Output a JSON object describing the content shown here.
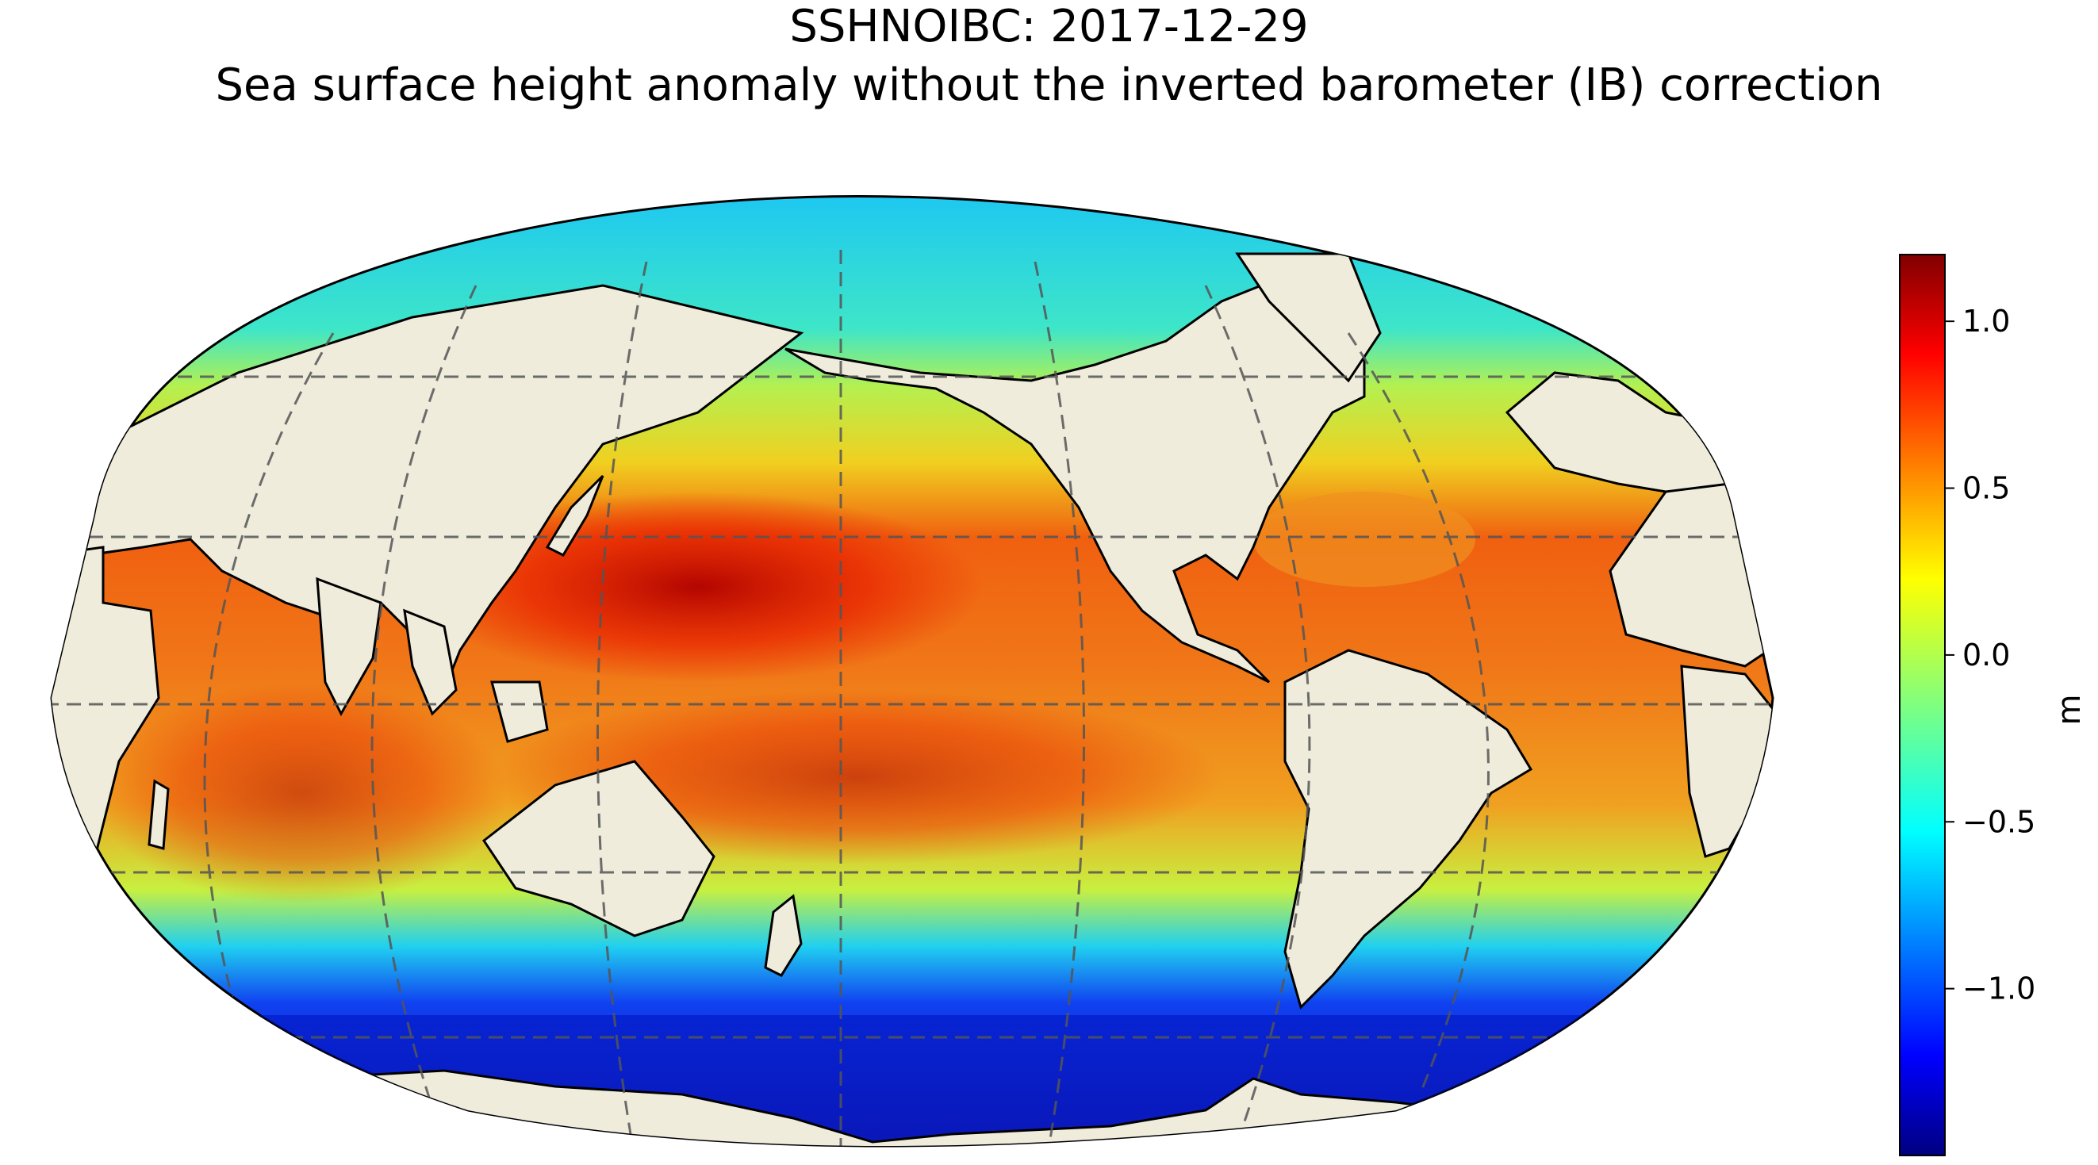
{
  "title": {
    "line1": "SSHNOIBC: 2017-12-29",
    "line2": "Sea surface height anomaly without the inverted barometer (IB) correction"
  },
  "map": {
    "projection": "Robinson",
    "central_longitude": 180,
    "colormap": "jet",
    "land_color": "#efecdc",
    "gridline_style": "dashed gray",
    "variable": "Sea surface height anomaly"
  },
  "colorbar": {
    "label": "m",
    "vmin": -1.5,
    "vmax": 1.2,
    "ticks": [
      1.0,
      0.5,
      0.0,
      -0.5,
      -1.0
    ],
    "tick_labels": [
      "1.0",
      "0.5",
      "0.0",
      "−0.5",
      "−1.0"
    ]
  }
}
